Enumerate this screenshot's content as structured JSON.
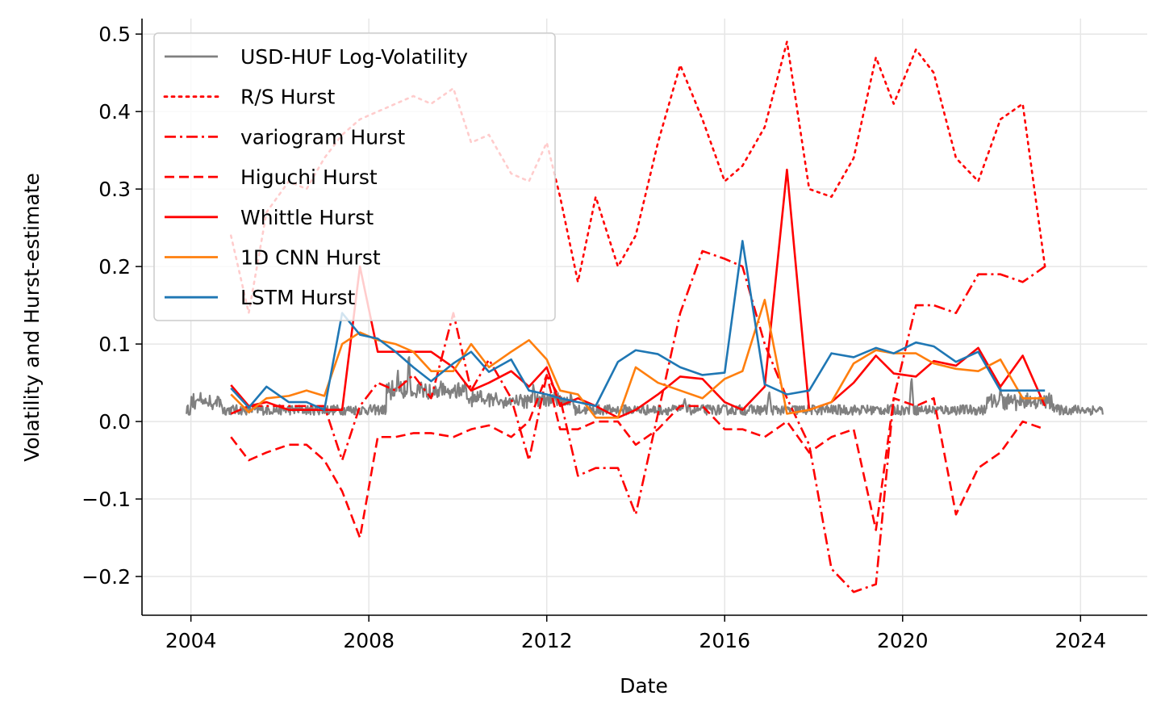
{
  "chart_data": {
    "type": "line",
    "xlabel": "Date",
    "ylabel": "Volatility and Hurst-estimate",
    "xlim": [
      2002.9,
      2025.5
    ],
    "ylim": [
      -0.25,
      0.52
    ],
    "x_ticks": [
      2004,
      2008,
      2012,
      2016,
      2020,
      2024
    ],
    "x_tick_labels": [
      "2004",
      "2008",
      "2012",
      "2016",
      "2020",
      "2024"
    ],
    "y_ticks": [
      -0.2,
      -0.1,
      0.0,
      0.1,
      0.2,
      0.3,
      0.4,
      0.5
    ],
    "y_tick_labels": [
      "−0.2",
      "−0.1",
      "0.0",
      "0.1",
      "0.2",
      "0.3",
      "0.4",
      "0.5"
    ],
    "grid": true,
    "legend_position": "top-left",
    "series": [
      {
        "name": "USD-HUF Log-Volatility",
        "color": "#808080",
        "style": "solid",
        "generated_noise": true,
        "x_start": 2003.9,
        "x_end": 2024.5,
        "base_level": 0.015,
        "spikes": [
          {
            "x": 2008.65,
            "y": 0.07
          },
          {
            "x": 2008.9,
            "y": 0.095
          },
          {
            "x": 2009.5,
            "y": 0.05
          },
          {
            "x": 2011.7,
            "y": 0.05
          },
          {
            "x": 2015.1,
            "y": 0.03
          },
          {
            "x": 2017.0,
            "y": 0.04
          },
          {
            "x": 2020.2,
            "y": 0.06
          },
          {
            "x": 2022.2,
            "y": 0.045
          }
        ]
      },
      {
        "name": "R/S Hurst",
        "color": "#ff0000",
        "style": "dotted",
        "x": [
          2004.9,
          2005.3,
          2005.7,
          2006.2,
          2006.6,
          2007.0,
          2007.4,
          2007.8,
          2008.2,
          2008.6,
          2009.0,
          2009.4,
          2009.9,
          2010.3,
          2010.7,
          2011.2,
          2011.6,
          2012.0,
          2012.3,
          2012.7,
          2013.1,
          2013.6,
          2014.0,
          2014.5,
          2015.0,
          2015.5,
          2016.0,
          2016.4,
          2016.9,
          2017.4,
          2017.9,
          2018.4,
          2018.9,
          2019.4,
          2019.8,
          2020.3,
          2020.7,
          2021.2,
          2021.7,
          2022.2,
          2022.7,
          2023.2
        ],
        "y": [
          0.24,
          0.14,
          0.27,
          0.31,
          0.3,
          0.34,
          0.37,
          0.39,
          0.4,
          0.41,
          0.42,
          0.41,
          0.43,
          0.36,
          0.37,
          0.32,
          0.31,
          0.36,
          0.29,
          0.18,
          0.29,
          0.2,
          0.24,
          0.36,
          0.46,
          0.39,
          0.31,
          0.33,
          0.38,
          0.49,
          0.3,
          0.29,
          0.34,
          0.47,
          0.41,
          0.48,
          0.45,
          0.34,
          0.31,
          0.39,
          0.41,
          0.2
        ]
      },
      {
        "name": "variogram Hurst",
        "color": "#ff0000",
        "style": "dashdot",
        "x": [
          2004.9,
          2005.3,
          2005.7,
          2006.2,
          2006.6,
          2007.0,
          2007.4,
          2007.8,
          2008.2,
          2008.6,
          2009.0,
          2009.4,
          2009.9,
          2010.3,
          2010.7,
          2011.2,
          2011.6,
          2012.0,
          2012.3,
          2012.7,
          2013.1,
          2013.6,
          2014.0,
          2014.5,
          2015.0,
          2015.5,
          2016.0,
          2016.4,
          2016.9,
          2017.4,
          2017.9,
          2018.4,
          2018.9,
          2019.4,
          2019.8,
          2020.3,
          2020.7,
          2021.2,
          2021.7,
          2022.2,
          2022.7,
          2023.2
        ],
        "y": [
          0.01,
          0.02,
          0.02,
          0.02,
          0.02,
          0.02,
          -0.05,
          0.02,
          0.05,
          0.04,
          0.06,
          0.03,
          0.14,
          0.04,
          0.08,
          0.03,
          -0.05,
          0.06,
          0.03,
          -0.07,
          -0.06,
          -0.06,
          -0.12,
          0.01,
          0.14,
          0.22,
          0.21,
          0.2,
          0.1,
          0.03,
          -0.03,
          -0.19,
          -0.22,
          -0.21,
          0.03,
          0.15,
          0.15,
          0.14,
          0.19,
          0.19,
          0.18,
          0.2
        ]
      },
      {
        "name": "Higuchi Hurst",
        "color": "#ff0000",
        "style": "dashed",
        "x": [
          2004.9,
          2005.3,
          2005.7,
          2006.2,
          2006.6,
          2007.0,
          2007.4,
          2007.8,
          2008.2,
          2008.6,
          2009.0,
          2009.4,
          2009.9,
          2010.3,
          2010.7,
          2011.2,
          2011.6,
          2012.0,
          2012.3,
          2012.7,
          2013.1,
          2013.6,
          2014.0,
          2014.5,
          2015.0,
          2015.5,
          2016.0,
          2016.4,
          2016.9,
          2017.4,
          2017.9,
          2018.4,
          2018.9,
          2019.4,
          2019.8,
          2020.3,
          2020.7,
          2021.2,
          2021.7,
          2022.2,
          2022.7,
          2023.2
        ],
        "y": [
          -0.02,
          -0.05,
          -0.04,
          -0.03,
          -0.03,
          -0.05,
          -0.09,
          -0.15,
          -0.02,
          -0.02,
          -0.015,
          -0.015,
          -0.02,
          -0.01,
          -0.005,
          -0.02,
          0.0,
          0.06,
          -0.01,
          -0.01,
          0.0,
          0.0,
          -0.03,
          -0.01,
          0.02,
          0.02,
          -0.01,
          -0.01,
          -0.02,
          0.0,
          -0.04,
          -0.02,
          -0.01,
          -0.14,
          0.03,
          0.02,
          0.03,
          -0.12,
          -0.06,
          -0.04,
          0.0,
          -0.01
        ]
      },
      {
        "name": "Whittle Hurst",
        "color": "#ff0000",
        "style": "solid",
        "x": [
          2004.9,
          2005.3,
          2005.7,
          2006.2,
          2006.6,
          2007.0,
          2007.4,
          2007.8,
          2008.2,
          2008.6,
          2009.0,
          2009.4,
          2009.9,
          2010.3,
          2010.7,
          2011.2,
          2011.6,
          2012.0,
          2012.3,
          2012.7,
          2013.1,
          2013.6,
          2014.0,
          2014.5,
          2015.0,
          2015.5,
          2016.0,
          2016.4,
          2016.9,
          2017.4,
          2017.9,
          2018.4,
          2018.9,
          2019.4,
          2019.8,
          2020.3,
          2020.7,
          2021.2,
          2021.7,
          2022.2,
          2022.7,
          2023.2
        ],
        "y": [
          0.047,
          0.02,
          0.025,
          0.015,
          0.015,
          0.015,
          0.015,
          0.2,
          0.09,
          0.09,
          0.09,
          0.09,
          0.07,
          0.04,
          0.05,
          0.065,
          0.045,
          0.07,
          0.02,
          0.03,
          0.02,
          0.005,
          0.015,
          0.035,
          0.058,
          0.055,
          0.025,
          0.015,
          0.045,
          0.325,
          0.015,
          0.025,
          0.05,
          0.085,
          0.062,
          0.058,
          0.078,
          0.072,
          0.095,
          0.045,
          0.085,
          0.02
        ]
      },
      {
        "name": "1D CNN Hurst",
        "color": "#ff7f0e",
        "style": "solid",
        "x": [
          2004.9,
          2005.3,
          2005.7,
          2006.2,
          2006.6,
          2007.0,
          2007.4,
          2007.8,
          2008.2,
          2008.6,
          2009.0,
          2009.4,
          2009.9,
          2010.3,
          2010.7,
          2011.2,
          2011.6,
          2012.0,
          2012.3,
          2012.7,
          2013.1,
          2013.6,
          2014.0,
          2014.5,
          2015.0,
          2015.5,
          2016.0,
          2016.4,
          2016.9,
          2017.4,
          2017.9,
          2018.4,
          2018.9,
          2019.4,
          2019.8,
          2020.3,
          2020.7,
          2021.2,
          2021.7,
          2022.2,
          2022.7,
          2023.2
        ],
        "y": [
          0.035,
          0.012,
          0.03,
          0.033,
          0.04,
          0.033,
          0.1,
          0.115,
          0.105,
          0.1,
          0.09,
          0.065,
          0.065,
          0.1,
          0.07,
          0.09,
          0.105,
          0.08,
          0.04,
          0.035,
          0.005,
          0.005,
          0.07,
          0.05,
          0.04,
          0.03,
          0.055,
          0.065,
          0.157,
          0.01,
          0.015,
          0.025,
          0.075,
          0.092,
          0.088,
          0.088,
          0.075,
          0.068,
          0.065,
          0.08,
          0.03,
          0.03
        ]
      },
      {
        "name": "LSTM Hurst",
        "color": "#1f77b4",
        "style": "solid",
        "x": [
          2004.9,
          2005.3,
          2005.7,
          2006.2,
          2006.6,
          2007.0,
          2007.4,
          2007.8,
          2008.2,
          2008.6,
          2009.0,
          2009.4,
          2009.9,
          2010.3,
          2010.7,
          2011.2,
          2011.6,
          2012.0,
          2012.3,
          2012.7,
          2013.1,
          2013.6,
          2014.0,
          2014.5,
          2015.0,
          2015.5,
          2016.0,
          2016.4,
          2016.9,
          2017.4,
          2017.9,
          2018.4,
          2018.9,
          2019.4,
          2019.8,
          2020.3,
          2020.7,
          2021.2,
          2021.7,
          2022.2,
          2022.7,
          2023.2
        ],
        "y": [
          0.043,
          0.018,
          0.045,
          0.025,
          0.025,
          0.015,
          0.14,
          0.112,
          0.107,
          0.09,
          0.07,
          0.052,
          0.075,
          0.09,
          0.064,
          0.08,
          0.04,
          0.035,
          0.03,
          0.025,
          0.02,
          0.077,
          0.092,
          0.087,
          0.07,
          0.06,
          0.063,
          0.233,
          0.048,
          0.035,
          0.04,
          0.088,
          0.083,
          0.095,
          0.088,
          0.102,
          0.097,
          0.077,
          0.09,
          0.04,
          0.04,
          0.04
        ]
      }
    ]
  }
}
